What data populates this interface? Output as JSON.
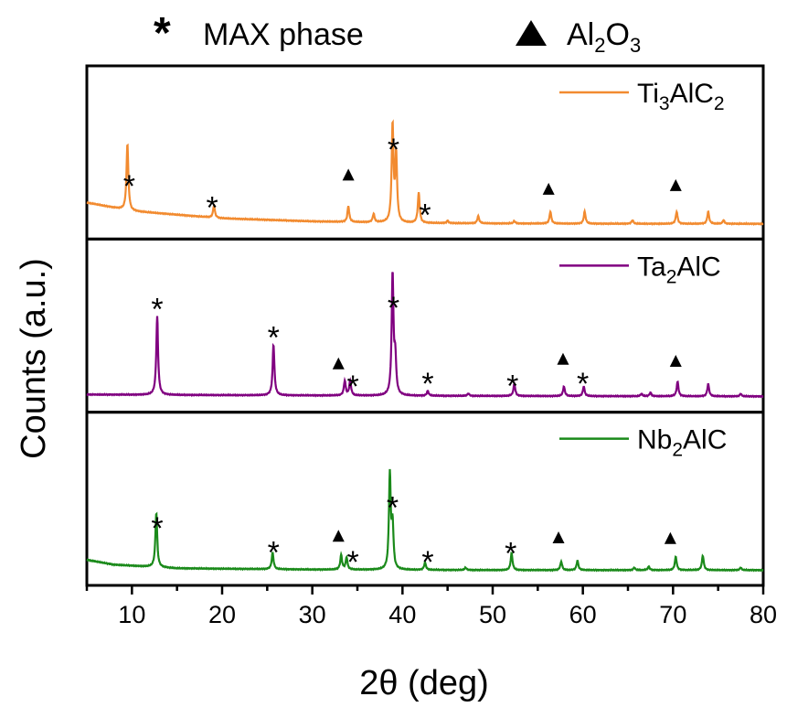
{
  "chart_data": {
    "type": "line",
    "top_legend": {
      "star_label": "MAX phase",
      "triangle_label_main": "Al",
      "triangle_label_sub1": "2",
      "triangle_label_mid": "O",
      "triangle_label_sub2": "3"
    },
    "xlabel": "2θ (deg)",
    "ylabel": "Counts (a.u.)",
    "xlim": [
      5,
      80
    ],
    "xticks": [
      10,
      20,
      30,
      40,
      50,
      60,
      70,
      80
    ],
    "panels": [
      {
        "name": "Ti3AlC2",
        "label_parts": [
          "Ti",
          "3",
          "AlC",
          "2"
        ],
        "color": "#f28b30",
        "baseline": [
          [
            5,
            0.18
          ],
          [
            10,
            0.11
          ],
          [
            20,
            0.05
          ],
          [
            30,
            0.025
          ],
          [
            40,
            0.012
          ],
          [
            50,
            0.008
          ],
          [
            60,
            0.006
          ],
          [
            70,
            0.005
          ],
          [
            80,
            0.005
          ]
        ],
        "peaks": [
          [
            9.5,
            0.55
          ],
          [
            19.1,
            0.1
          ],
          [
            34.0,
            0.13
          ],
          [
            36.8,
            0.07
          ],
          [
            38.9,
            0.8
          ],
          [
            39.3,
            0.55
          ],
          [
            41.8,
            0.25
          ],
          [
            45.0,
            0.02
          ],
          [
            48.4,
            0.06
          ],
          [
            52.4,
            0.02
          ],
          [
            56.4,
            0.1
          ],
          [
            60.2,
            0.1
          ],
          [
            65.5,
            0.03
          ],
          [
            70.4,
            0.1
          ],
          [
            73.9,
            0.1
          ],
          [
            75.6,
            0.03
          ]
        ],
        "stars": [
          9.7,
          18.9,
          39.0,
          42.5
        ],
        "triangles": [
          34.0,
          56.2,
          70.3
        ]
      },
      {
        "name": "Ta2AlC",
        "label_parts": [
          "Ta",
          "2",
          "AlC",
          ""
        ],
        "color": "#800080",
        "baseline": [
          [
            5,
            0.025
          ],
          [
            20,
            0.02
          ],
          [
            40,
            0.015
          ],
          [
            60,
            0.012
          ],
          [
            80,
            0.01
          ]
        ],
        "peaks": [
          [
            12.8,
            0.65
          ],
          [
            25.7,
            0.42
          ],
          [
            33.6,
            0.12
          ],
          [
            34.2,
            0.12
          ],
          [
            38.9,
            1.0
          ],
          [
            39.2,
            0.3
          ],
          [
            42.8,
            0.04
          ],
          [
            47.3,
            0.02
          ],
          [
            52.4,
            0.1
          ],
          [
            57.9,
            0.08
          ],
          [
            60.1,
            0.08
          ],
          [
            66.5,
            0.02
          ],
          [
            67.5,
            0.03
          ],
          [
            70.5,
            0.12
          ],
          [
            73.9,
            0.1
          ],
          [
            77.5,
            0.02
          ]
        ],
        "stars": [
          12.8,
          25.7,
          34.5,
          39.0,
          42.8,
          52.2,
          60.0
        ],
        "triangles": [
          32.9,
          57.8,
          70.3
        ]
      },
      {
        "name": "Nb2AlC",
        "label_parts": [
          "Nb",
          "2",
          "AlC",
          ""
        ],
        "color": "#1a8a1a",
        "baseline": [
          [
            5,
            0.09
          ],
          [
            8,
            0.05
          ],
          [
            15,
            0.02
          ],
          [
            30,
            0.01
          ],
          [
            50,
            0.005
          ],
          [
            80,
            0.005
          ]
        ],
        "peaks": [
          [
            12.7,
            0.45
          ],
          [
            25.6,
            0.14
          ],
          [
            33.2,
            0.12
          ],
          [
            33.8,
            0.1
          ],
          [
            38.6,
            0.78
          ],
          [
            38.9,
            0.35
          ],
          [
            42.5,
            0.06
          ],
          [
            47.0,
            0.02
          ],
          [
            52.1,
            0.14
          ],
          [
            57.6,
            0.07
          ],
          [
            59.4,
            0.08
          ],
          [
            65.7,
            0.02
          ],
          [
            67.3,
            0.03
          ],
          [
            70.3,
            0.11
          ],
          [
            73.3,
            0.12
          ],
          [
            77.5,
            0.02
          ]
        ],
        "stars": [
          12.8,
          25.7,
          34.5,
          38.9,
          42.8,
          52.0
        ],
        "triangles": [
          32.9,
          57.3,
          69.7
        ]
      }
    ]
  }
}
